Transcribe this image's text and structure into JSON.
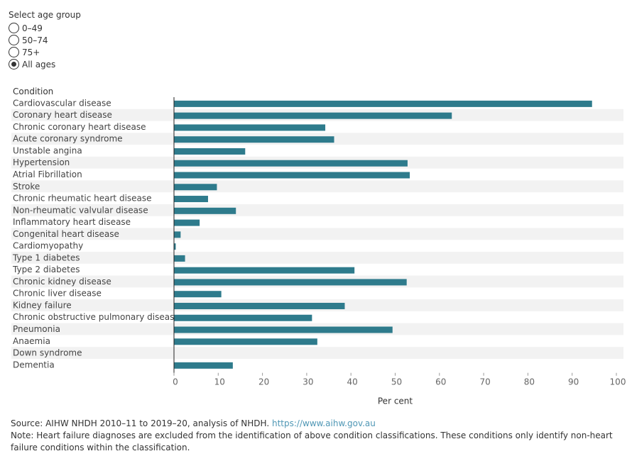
{
  "filter": {
    "title": "Select age group",
    "options": [
      {
        "label": "0–49",
        "selected": false
      },
      {
        "label": "50–74",
        "selected": false
      },
      {
        "label": "75+",
        "selected": false
      },
      {
        "label": "All ages",
        "selected": true
      }
    ]
  },
  "chart_data": {
    "type": "bar",
    "orientation": "horizontal",
    "category_header": "Condition",
    "xlabel": "Per cent",
    "xlim": [
      0,
      100
    ],
    "xticks": [
      0,
      10,
      20,
      30,
      40,
      50,
      60,
      70,
      80,
      90,
      100
    ],
    "bar_color": "#2e7b8c",
    "band_color": "#f2f2f2",
    "categories": [
      "Cardiovascular disease",
      "Coronary heart disease",
      "Chronic coronary heart disease",
      "Acute coronary syndrome",
      "Unstable angina",
      "Hypertension",
      "Atrial Fibrillation",
      "Stroke",
      "Chronic rheumatic heart disease",
      "Non-rheumatic valvular disease",
      "Inflammatory heart disease",
      "Congenital heart disease",
      "Cardiomyopathy",
      "Type 1 diabetes",
      "Type 2 diabetes",
      "Chronic kidney disease",
      "Chronic liver disease",
      "Kidney failure",
      "Chronic obstructive pulmonary disease",
      "Pneumonia",
      "Anaemia",
      "Down syndrome",
      "Dementia"
    ],
    "values": [
      94.5,
      62.8,
      34.2,
      36.2,
      16.1,
      52.8,
      53.3,
      9.7,
      7.7,
      14.0,
      5.8,
      1.5,
      0.4,
      2.5,
      40.8,
      52.6,
      10.7,
      38.6,
      31.2,
      49.4,
      32.4,
      0,
      13.3
    ]
  },
  "footer": {
    "source_text": "Source: AIHW NHDH 2010–11 to 2019–20, analysis of NHDH. ",
    "source_link": "https://www.aihw.gov.au",
    "note": "Note: Heart failure diagnoses are excluded from the identification of above condition classifications. These conditions only identify non-heart failure conditions within the classification."
  }
}
